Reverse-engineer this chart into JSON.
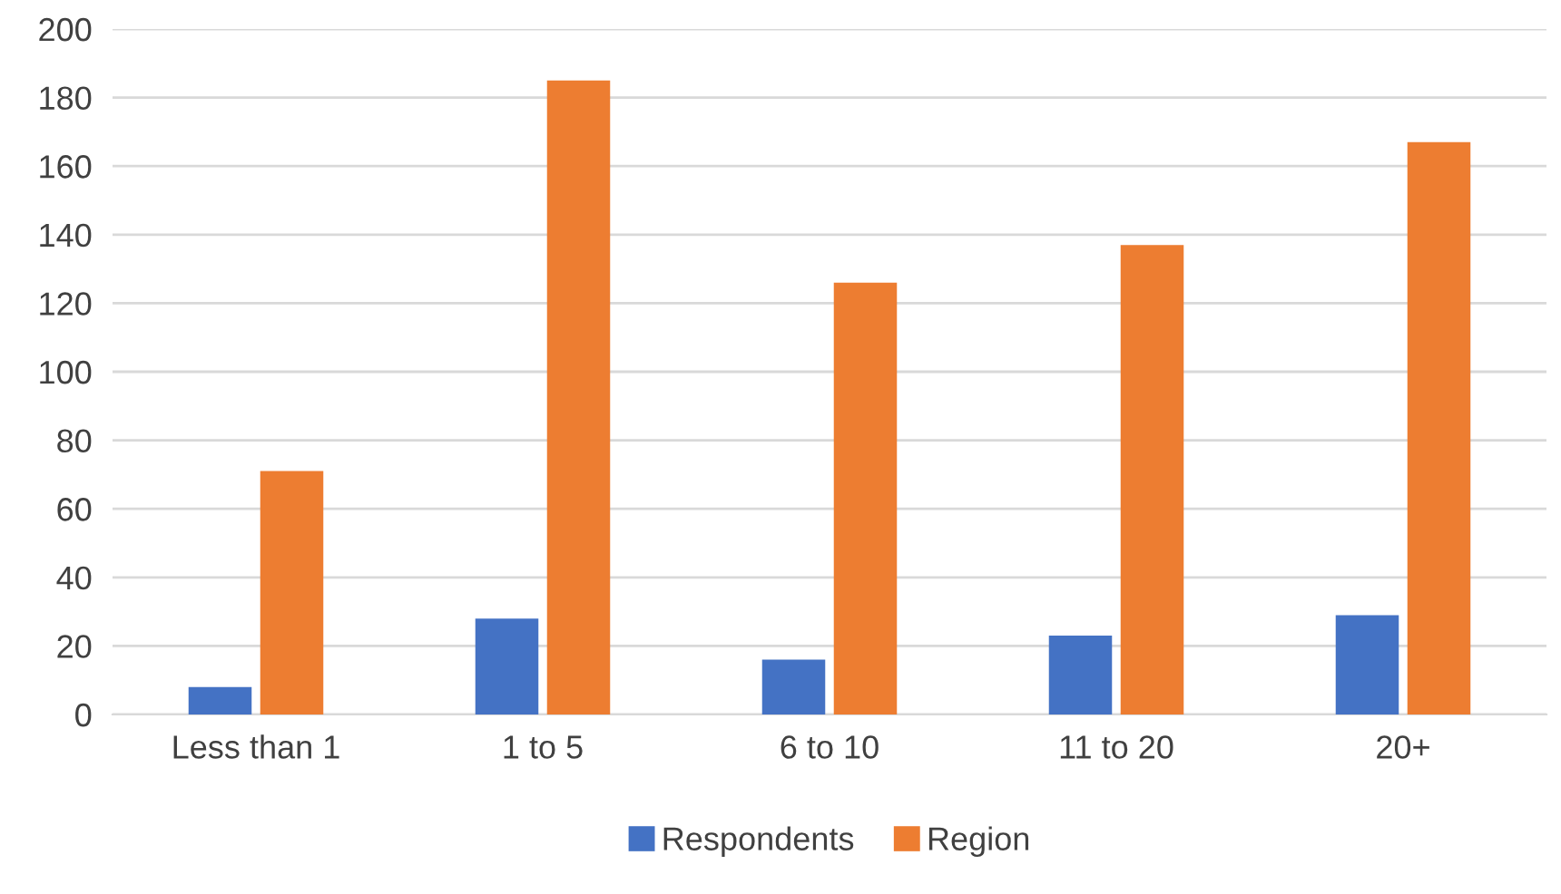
{
  "chart_data": {
    "type": "bar",
    "categories": [
      "Less than 1",
      "1 to 5",
      "6 to 10",
      "11 to 20",
      "20+"
    ],
    "series": [
      {
        "name": "Respondents",
        "color": "#4472c4",
        "values": [
          8,
          28,
          16,
          23,
          29
        ]
      },
      {
        "name": "Region",
        "color": "#ed7d31",
        "values": [
          71,
          185,
          126,
          137,
          167
        ]
      }
    ],
    "ylim": [
      0,
      200
    ],
    "yticks": [
      0,
      20,
      40,
      60,
      80,
      100,
      120,
      140,
      160,
      180,
      200
    ],
    "grid": "y",
    "legend": "bottom"
  }
}
